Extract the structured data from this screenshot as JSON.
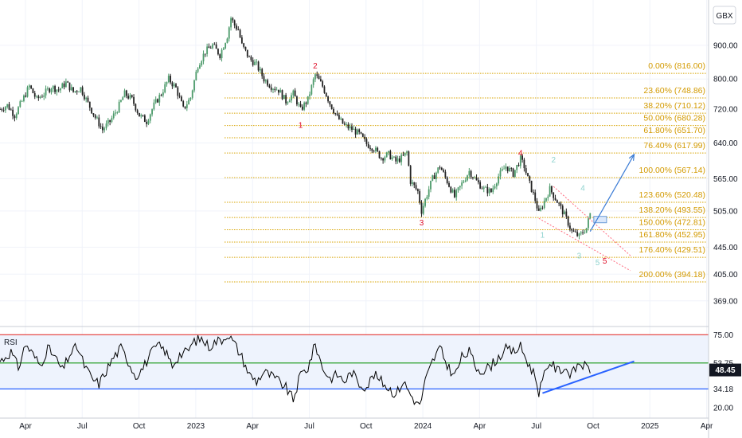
{
  "chart_data": {
    "type": "candlestick",
    "currency": "GBX",
    "price_axis": {
      "ylim": [
        345,
        1025
      ],
      "ticks": [
        "900.00",
        "800.00",
        "720.00",
        "640.00",
        "565.00",
        "505.00",
        "445.00",
        "405.00",
        "369.00"
      ]
    },
    "time_axis": {
      "labels": [
        "Apr",
        "Jul",
        "Oct",
        "2023",
        "Apr",
        "Jul",
        "Oct",
        "2024",
        "Apr",
        "Jul",
        "Oct",
        "2025",
        "Apr"
      ]
    },
    "price_path": [
      [
        0,
        720
      ],
      [
        2,
        730
      ],
      [
        4,
        705
      ],
      [
        6,
        740
      ],
      [
        8,
        780
      ],
      [
        10,
        745
      ],
      [
        12,
        760
      ],
      [
        14,
        778
      ],
      [
        16,
        770
      ],
      [
        18,
        790
      ],
      [
        20,
        765
      ],
      [
        22,
        775
      ],
      [
        24,
        735
      ],
      [
        26,
        700
      ],
      [
        28,
        670
      ],
      [
        30,
        690
      ],
      [
        32,
        720
      ],
      [
        34,
        760
      ],
      [
        36,
        745
      ],
      [
        38,
        705
      ],
      [
        40,
        690
      ],
      [
        42,
        730
      ],
      [
        44,
        760
      ],
      [
        46,
        800
      ],
      [
        48,
        775
      ],
      [
        50,
        720
      ],
      [
        52,
        750
      ],
      [
        54,
        840
      ],
      [
        56,
        880
      ],
      [
        58,
        900
      ],
      [
        60,
        870
      ],
      [
        62,
        930
      ],
      [
        63,
        990
      ],
      [
        64,
        965
      ],
      [
        65,
        950
      ],
      [
        66,
        900
      ],
      [
        68,
        860
      ],
      [
        70,
        840
      ],
      [
        72,
        800
      ],
      [
        74,
        780
      ],
      [
        76,
        770
      ],
      [
        78,
        740
      ],
      [
        80,
        760
      ],
      [
        82,
        718
      ],
      [
        84,
        745
      ],
      [
        86,
        812
      ],
      [
        88,
        780
      ],
      [
        90,
        735
      ],
      [
        92,
        700
      ],
      [
        94,
        680
      ],
      [
        96,
        672
      ],
      [
        98,
        660
      ],
      [
        100,
        638
      ],
      [
        102,
        628
      ],
      [
        104,
        608
      ],
      [
        106,
        615
      ],
      [
        108,
        600
      ],
      [
        110,
        610
      ],
      [
        111,
        620
      ],
      [
        112,
        560
      ],
      [
        114,
        540
      ],
      [
        115,
        505
      ],
      [
        116,
        525
      ],
      [
        118,
        565
      ],
      [
        120,
        590
      ],
      [
        122,
        560
      ],
      [
        124,
        530
      ],
      [
        126,
        555
      ],
      [
        128,
        580
      ],
      [
        130,
        560
      ],
      [
        132,
        545
      ],
      [
        134,
        540
      ],
      [
        136,
        570
      ],
      [
        138,
        590
      ],
      [
        140,
        575
      ],
      [
        142,
        605
      ],
      [
        143,
        590
      ],
      [
        144,
        565
      ],
      [
        146,
        525
      ],
      [
        147,
        500
      ],
      [
        148,
        515
      ],
      [
        150,
        545
      ],
      [
        152,
        522
      ],
      [
        154,
        498
      ],
      [
        156,
        470
      ],
      [
        158,
        462
      ],
      [
        160,
        476
      ],
      [
        161,
        500
      ]
    ],
    "elliott_wave": {
      "main_labels": [
        {
          "label": "1",
          "t": 82,
          "price": 675
        },
        {
          "label": "2",
          "t": 86,
          "price": 830
        },
        {
          "label": "3",
          "t": 115,
          "price": 480
        },
        {
          "label": "4",
          "t": 142,
          "price": 612
        },
        {
          "label": "5",
          "t": 165,
          "price": 420
        }
      ],
      "sub_labels": [
        {
          "label": "1",
          "t": 148,
          "price": 460
        },
        {
          "label": "2",
          "t": 151,
          "price": 598
        },
        {
          "label": "3",
          "t": 158,
          "price": 428
        },
        {
          "label": "4",
          "t": 159,
          "price": 542
        },
        {
          "label": "5",
          "t": 163,
          "price": 418
        }
      ]
    },
    "fibonacci": [
      {
        "ratio": "0.00%",
        "price": 816.0
      },
      {
        "ratio": "23.60%",
        "price": 748.86
      },
      {
        "ratio": "38.20%",
        "price": 710.12
      },
      {
        "ratio": "50.00%",
        "price": 680.28
      },
      {
        "ratio": "61.80%",
        "price": 651.7
      },
      {
        "ratio": "76.40%",
        "price": 617.99
      },
      {
        "ratio": "100.00%",
        "price": 567.14
      },
      {
        "ratio": "123.60%",
        "price": 520.48
      },
      {
        "ratio": "138.20%",
        "price": 493.55
      },
      {
        "ratio": "150.00%",
        "price": 472.81
      },
      {
        "ratio": "161.80%",
        "price": 452.95
      },
      {
        "ratio": "176.40%",
        "price": 429.51
      },
      {
        "ratio": "200.00%",
        "price": 394.18
      }
    ],
    "projection_arrow": {
      "from": [
        161,
        470
      ],
      "to": [
        173,
        615
      ]
    },
    "wedge": {
      "upper": [
        [
          151,
          550
        ],
        [
          172,
          432
        ]
      ],
      "lower": [
        [
          147,
          492
        ],
        [
          172,
          410
        ]
      ]
    },
    "rsi": {
      "title": "RSI",
      "ylim": [
        14,
        80
      ],
      "ticks": [
        "75.00",
        "53.75",
        "34.18",
        "20.00"
      ],
      "current": "48.45",
      "overbought": 75,
      "oversold": 34.18,
      "mid_level": 53.75,
      "trendline": [
        [
          148,
          31
        ],
        [
          173,
          55
        ]
      ],
      "path": [
        [
          0,
          55
        ],
        [
          3,
          62
        ],
        [
          5,
          50
        ],
        [
          7,
          68
        ],
        [
          9,
          60
        ],
        [
          11,
          52
        ],
        [
          13,
          65
        ],
        [
          15,
          58
        ],
        [
          17,
          48
        ],
        [
          19,
          60
        ],
        [
          21,
          66
        ],
        [
          23,
          52
        ],
        [
          25,
          42
        ],
        [
          27,
          38
        ],
        [
          29,
          48
        ],
        [
          31,
          58
        ],
        [
          33,
          65
        ],
        [
          35,
          55
        ],
        [
          37,
          44
        ],
        [
          39,
          50
        ],
        [
          41,
          60
        ],
        [
          43,
          67
        ],
        [
          45,
          63
        ],
        [
          47,
          52
        ],
        [
          49,
          60
        ],
        [
          51,
          62
        ],
        [
          53,
          70
        ],
        [
          55,
          72
        ],
        [
          57,
          66
        ],
        [
          59,
          70
        ],
        [
          61,
          72
        ],
        [
          62,
          76
        ],
        [
          64,
          68
        ],
        [
          66,
          58
        ],
        [
          68,
          45
        ],
        [
          70,
          40
        ],
        [
          72,
          47
        ],
        [
          74,
          44
        ],
        [
          76,
          40
        ],
        [
          78,
          35
        ],
        [
          80,
          26
        ],
        [
          82,
          45
        ],
        [
          84,
          50
        ],
        [
          86,
          68
        ],
        [
          88,
          50
        ],
        [
          90,
          42
        ],
        [
          92,
          45
        ],
        [
          94,
          40
        ],
        [
          96,
          47
        ],
        [
          98,
          38
        ],
        [
          100,
          36
        ],
        [
          102,
          45
        ],
        [
          104,
          40
        ],
        [
          106,
          35
        ],
        [
          108,
          30
        ],
        [
          110,
          40
        ],
        [
          112,
          30
        ],
        [
          114,
          22
        ],
        [
          115,
          26
        ],
        [
          116,
          40
        ],
        [
          118,
          55
        ],
        [
          120,
          65
        ],
        [
          122,
          52
        ],
        [
          124,
          44
        ],
        [
          126,
          58
        ],
        [
          128,
          62
        ],
        [
          130,
          50
        ],
        [
          132,
          48
        ],
        [
          134,
          52
        ],
        [
          136,
          58
        ],
        [
          138,
          64
        ],
        [
          140,
          62
        ],
        [
          142,
          66
        ],
        [
          143,
          60
        ],
        [
          144,
          54
        ],
        [
          146,
          44
        ],
        [
          147,
          32
        ],
        [
          148,
          40
        ],
        [
          150,
          55
        ],
        [
          152,
          48
        ],
        [
          154,
          50
        ],
        [
          156,
          45
        ],
        [
          158,
          54
        ],
        [
          160,
          50
        ],
        [
          161,
          48
        ]
      ]
    }
  }
}
